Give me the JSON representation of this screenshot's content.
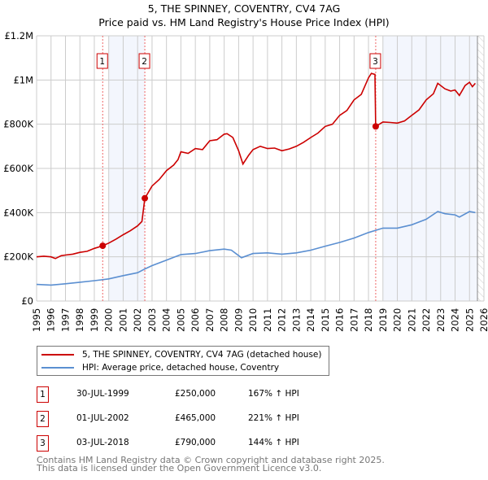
{
  "chart_data": {
    "type": "line",
    "title": "5, THE SPINNEY, COVENTRY, CV4 7AG",
    "subtitle": "Price paid vs. HM Land Registry's House Price Index (HPI)",
    "xlim": [
      1995,
      2026
    ],
    "ylim": [
      0,
      1200000
    ],
    "y_ticks": [
      {
        "v": 0,
        "label": "£0"
      },
      {
        "v": 200000,
        "label": "£200K"
      },
      {
        "v": 400000,
        "label": "£400K"
      },
      {
        "v": 600000,
        "label": "£600K"
      },
      {
        "v": 800000,
        "label": "£800K"
      },
      {
        "v": 1000000,
        "label": "£1M"
      },
      {
        "v": 1200000,
        "label": "£1.2M"
      }
    ],
    "x_ticks": [
      "1995",
      "1996",
      "1997",
      "1998",
      "1999",
      "2000",
      "2001",
      "2002",
      "2003",
      "2004",
      "2005",
      "2006",
      "2007",
      "2008",
      "2009",
      "2010",
      "2011",
      "2012",
      "2013",
      "2014",
      "2015",
      "2016",
      "2017",
      "2018",
      "2019",
      "2020",
      "2021",
      "2022",
      "2023",
      "2024",
      "2025",
      "2026"
    ],
    "grid": true,
    "shaded_ranges": [
      [
        2000.0,
        2002.5
      ],
      [
        2019.0,
        2025.55
      ]
    ],
    "hatched_from": 2025.55,
    "series": [
      {
        "name": "5, THE SPINNEY, COVENTRY, CV4 7AG (detached house)",
        "color": "#cc0000",
        "x": [
          1995,
          1995.5,
          1996,
          1996.3,
          1996.7,
          1997,
          1997.5,
          1998,
          1998.5,
          1999,
          1999.58,
          2000,
          2000.5,
          2001,
          2001.5,
          2002,
          2002.3,
          2002.5,
          2003,
          2003.5,
          2004,
          2004.5,
          2004.8,
          2005,
          2005.5,
          2006,
          2006.5,
          2007,
          2007.5,
          2008,
          2008.2,
          2008.6,
          2009,
          2009.3,
          2009.7,
          2010,
          2010.5,
          2011,
          2011.5,
          2012,
          2012.5,
          2013,
          2013.5,
          2014,
          2014.5,
          2015,
          2015.5,
          2016,
          2016.5,
          2017,
          2017.5,
          2018,
          2018.2,
          2018.45,
          2018.5,
          2019,
          2019.5,
          2020,
          2020.5,
          2021,
          2021.5,
          2022,
          2022.5,
          2022.8,
          2023.3,
          2023.7,
          2024,
          2024.3,
          2024.7,
          2025,
          2025.2,
          2025.4
        ],
        "y": [
          200000,
          203000,
          200000,
          192000,
          205000,
          208000,
          212000,
          220000,
          225000,
          238000,
          250000,
          262000,
          280000,
          300000,
          318000,
          340000,
          360000,
          465000,
          520000,
          550000,
          590000,
          615000,
          640000,
          675000,
          668000,
          690000,
          685000,
          725000,
          730000,
          755000,
          757000,
          740000,
          680000,
          620000,
          660000,
          685000,
          700000,
          690000,
          692000,
          680000,
          688000,
          700000,
          718000,
          740000,
          760000,
          790000,
          800000,
          840000,
          862000,
          910000,
          935000,
          1010000,
          1030000,
          1025000,
          790000,
          810000,
          808000,
          805000,
          815000,
          840000,
          865000,
          910000,
          938000,
          985000,
          960000,
          950000,
          955000,
          930000,
          975000,
          990000,
          970000,
          985000
        ]
      },
      {
        "name": "HPI: Average price, detached house, Coventry",
        "color": "#5b8fd1",
        "x": [
          1995,
          1996,
          1997,
          1998,
          1999,
          2000,
          2001,
          2002,
          2002.5,
          2003,
          2004,
          2005,
          2006,
          2007,
          2008,
          2008.5,
          2009.2,
          2010,
          2011,
          2012,
          2013,
          2014,
          2015,
          2016,
          2017,
          2018,
          2019,
          2020,
          2021,
          2022,
          2022.8,
          2023.3,
          2024,
          2024.3,
          2025,
          2025.4
        ],
        "y": [
          75000,
          72000,
          78000,
          85000,
          92000,
          100000,
          115000,
          128000,
          145000,
          160000,
          185000,
          210000,
          215000,
          228000,
          235000,
          230000,
          196000,
          215000,
          218000,
          212000,
          218000,
          230000,
          248000,
          265000,
          285000,
          310000,
          330000,
          330000,
          345000,
          370000,
          405000,
          395000,
          390000,
          380000,
          405000,
          400000
        ]
      }
    ],
    "sales": [
      {
        "id": "1",
        "x": 1999.58,
        "price": 250000,
        "date": "30-JUL-1999",
        "price_label": "£250,000",
        "hpi": "167% ↑ HPI"
      },
      {
        "id": "2",
        "x": 2002.5,
        "price": 465000,
        "date": "01-JUL-2002",
        "price_label": "£465,000",
        "hpi": "221% ↑ HPI"
      },
      {
        "id": "3",
        "x": 2018.5,
        "price": 790000,
        "date": "03-JUL-2018",
        "price_label": "£790,000",
        "hpi": "144% ↑ HPI"
      }
    ]
  },
  "footer": {
    "line1": "Contains HM Land Registry data © Crown copyright and database right 2025.",
    "line2": "This data is licensed under the Open Government Licence v3.0."
  }
}
